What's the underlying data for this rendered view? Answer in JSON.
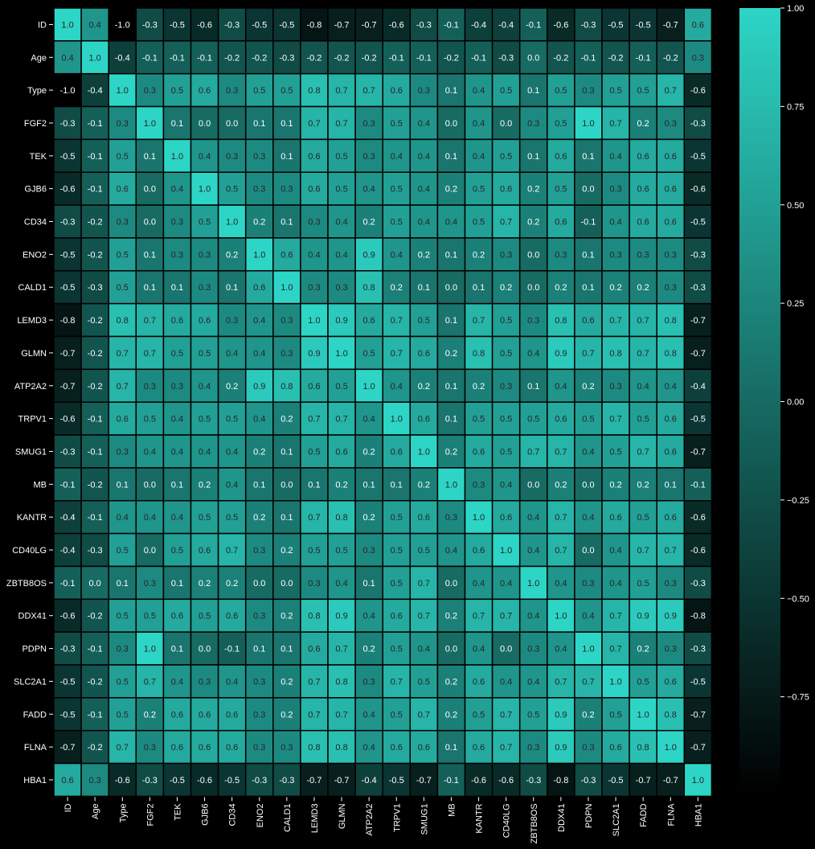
{
  "chart_data": {
    "type": "heatmap",
    "title": "",
    "xlabel": "",
    "ylabel": "",
    "rows": [
      "ID",
      "Age",
      "Type",
      "FGF2",
      "TEK",
      "GJB6",
      "CD34",
      "ENO2",
      "CALD1",
      "LEMD3",
      "GLMN",
      "ATP2A2",
      "TRPV1",
      "SMUG1",
      "MB",
      "KANTR",
      "CD40LG",
      "ZBTB8OS",
      "DDX41",
      "PDPN",
      "SLC2A1",
      "FADD",
      "FLNA",
      "HBA1"
    ],
    "columns": [
      "ID",
      "Age",
      "Type",
      "FGF2",
      "TEK",
      "GJB6",
      "CD34",
      "ENO2",
      "CALD1",
      "LEMD3",
      "GLMN",
      "ATP2A2",
      "TRPV1",
      "SMUG1",
      "MB",
      "KANTR",
      "CD40LG",
      "ZBTB8OS",
      "DDX41",
      "PDPN",
      "SLC2A1",
      "FADD",
      "FLNA",
      "HBA1"
    ],
    "values": [
      [
        1.0,
        0.4,
        -1.0,
        -0.3,
        -0.5,
        -0.6,
        -0.3,
        -0.5,
        -0.5,
        -0.8,
        -0.7,
        -0.7,
        -0.6,
        -0.3,
        -0.1,
        -0.4,
        -0.4,
        -0.1,
        -0.6,
        -0.3,
        -0.5,
        -0.5,
        -0.7,
        0.6
      ],
      [
        0.4,
        1.0,
        -0.4,
        -0.1,
        -0.1,
        -0.1,
        -0.2,
        -0.2,
        -0.3,
        -0.2,
        -0.2,
        -0.2,
        -0.1,
        -0.1,
        -0.2,
        -0.1,
        -0.3,
        0.0,
        -0.2,
        -0.1,
        -0.2,
        -0.1,
        -0.2,
        0.3
      ],
      [
        -1.0,
        -0.4,
        1.0,
        0.3,
        0.5,
        0.6,
        0.3,
        0.5,
        0.5,
        0.8,
        0.7,
        0.7,
        0.6,
        0.3,
        0.1,
        0.4,
        0.5,
        0.1,
        0.5,
        0.3,
        0.5,
        0.5,
        0.7,
        -0.6
      ],
      [
        -0.3,
        -0.1,
        0.3,
        1.0,
        0.1,
        0.0,
        -0.0,
        0.1,
        0.1,
        0.7,
        0.7,
        0.3,
        0.5,
        0.4,
        -0.0,
        0.4,
        0.0,
        0.3,
        0.5,
        1.0,
        0.7,
        0.2,
        0.3,
        -0.3
      ],
      [
        -0.5,
        -0.1,
        0.5,
        0.1,
        1.0,
        0.4,
        0.3,
        0.3,
        0.1,
        0.6,
        0.5,
        0.3,
        0.4,
        0.4,
        0.1,
        0.4,
        0.5,
        0.1,
        0.6,
        0.1,
        0.4,
        0.6,
        0.6,
        -0.5
      ],
      [
        -0.6,
        -0.1,
        0.6,
        0.0,
        0.4,
        1.0,
        0.5,
        0.3,
        0.3,
        0.6,
        0.5,
        0.4,
        0.5,
        0.4,
        0.2,
        0.5,
        0.6,
        0.2,
        0.5,
        0.0,
        0.3,
        0.6,
        0.6,
        -0.6
      ],
      [
        -0.3,
        -0.2,
        0.3,
        -0.0,
        0.3,
        0.5,
        1.0,
        0.2,
        0.1,
        0.3,
        0.4,
        0.2,
        0.5,
        0.4,
        0.4,
        0.5,
        0.7,
        0.2,
        0.6,
        -0.1,
        0.4,
        0.6,
        0.6,
        -0.5
      ],
      [
        -0.5,
        -0.2,
        0.5,
        0.1,
        0.3,
        0.3,
        0.2,
        1.0,
        0.6,
        0.4,
        0.4,
        0.9,
        0.4,
        0.2,
        0.1,
        0.2,
        0.3,
        -0.0,
        0.3,
        0.1,
        0.3,
        0.3,
        0.3,
        -0.3
      ],
      [
        -0.5,
        -0.3,
        0.5,
        0.1,
        0.1,
        0.3,
        0.1,
        0.6,
        1.0,
        0.3,
        0.3,
        0.8,
        0.2,
        0.1,
        0.0,
        0.1,
        0.2,
        -0.0,
        0.2,
        0.1,
        0.2,
        0.2,
        0.3,
        -0.3
      ],
      [
        -0.8,
        -0.2,
        0.8,
        0.7,
        0.6,
        0.6,
        0.3,
        0.4,
        0.3,
        1.0,
        0.9,
        0.6,
        0.7,
        0.5,
        0.1,
        0.7,
        0.5,
        0.3,
        0.8,
        0.6,
        0.7,
        0.7,
        0.8,
        -0.7
      ],
      [
        -0.7,
        -0.2,
        0.7,
        0.7,
        0.5,
        0.5,
        0.4,
        0.4,
        0.3,
        0.9,
        1.0,
        0.5,
        0.7,
        0.6,
        0.2,
        0.8,
        0.5,
        0.4,
        0.9,
        0.7,
        0.8,
        0.7,
        0.8,
        -0.7
      ],
      [
        -0.7,
        -0.2,
        0.7,
        0.3,
        0.3,
        0.4,
        0.2,
        0.9,
        0.8,
        0.6,
        0.5,
        1.0,
        0.4,
        0.2,
        0.1,
        0.2,
        0.3,
        0.1,
        0.4,
        0.2,
        0.3,
        0.4,
        0.4,
        -0.4
      ],
      [
        -0.6,
        -0.1,
        0.6,
        0.5,
        0.4,
        0.5,
        0.5,
        0.4,
        0.2,
        0.7,
        0.7,
        0.4,
        1.0,
        0.6,
        0.1,
        0.5,
        0.5,
        0.5,
        0.6,
        0.5,
        0.7,
        0.5,
        0.6,
        -0.5
      ],
      [
        -0.3,
        -0.1,
        0.3,
        0.4,
        0.4,
        0.4,
        0.4,
        0.2,
        0.1,
        0.5,
        0.6,
        0.2,
        0.6,
        1.0,
        0.2,
        0.6,
        0.5,
        0.7,
        0.7,
        0.4,
        0.5,
        0.7,
        0.6,
        -0.7
      ],
      [
        -0.1,
        -0.2,
        0.1,
        -0.0,
        0.1,
        0.2,
        0.4,
        0.1,
        0.0,
        0.1,
        0.2,
        0.1,
        0.1,
        0.2,
        1.0,
        0.3,
        0.4,
        0.0,
        0.2,
        -0.0,
        0.2,
        0.2,
        0.1,
        -0.1
      ],
      [
        -0.4,
        -0.1,
        0.4,
        0.4,
        0.4,
        0.5,
        0.5,
        0.2,
        0.1,
        0.7,
        0.8,
        0.2,
        0.5,
        0.6,
        0.3,
        1.0,
        0.6,
        0.4,
        0.7,
        0.4,
        0.6,
        0.5,
        0.6,
        -0.6
      ],
      [
        -0.4,
        -0.3,
        0.5,
        0.0,
        0.5,
        0.6,
        0.7,
        0.3,
        0.2,
        0.5,
        0.5,
        0.3,
        0.5,
        0.5,
        0.4,
        0.6,
        1.0,
        0.4,
        0.7,
        -0.0,
        0.4,
        0.7,
        0.7,
        -0.6
      ],
      [
        -0.1,
        0.0,
        0.1,
        0.3,
        0.1,
        0.2,
        0.2,
        -0.0,
        -0.0,
        0.3,
        0.4,
        0.1,
        0.5,
        0.7,
        0.0,
        0.4,
        0.4,
        1.0,
        0.4,
        0.3,
        0.4,
        0.5,
        0.3,
        -0.3
      ],
      [
        -0.6,
        -0.2,
        0.5,
        0.5,
        0.6,
        0.5,
        0.6,
        0.3,
        0.2,
        0.8,
        0.9,
        0.4,
        0.6,
        0.7,
        0.2,
        0.7,
        0.7,
        0.4,
        1.0,
        0.4,
        0.7,
        0.9,
        0.9,
        -0.8
      ],
      [
        -0.3,
        -0.1,
        0.3,
        1.0,
        0.1,
        0.0,
        -0.1,
        0.1,
        0.1,
        0.6,
        0.7,
        0.2,
        0.5,
        0.4,
        -0.0,
        0.4,
        -0.0,
        0.3,
        0.4,
        1.0,
        0.7,
        0.2,
        0.3,
        -0.3
      ],
      [
        -0.5,
        -0.2,
        0.5,
        0.7,
        0.4,
        0.3,
        0.4,
        0.3,
        0.2,
        0.7,
        0.8,
        0.3,
        0.7,
        0.5,
        0.2,
        0.6,
        0.4,
        0.4,
        0.7,
        0.7,
        1.0,
        0.5,
        0.6,
        -0.5
      ],
      [
        -0.5,
        -0.1,
        0.5,
        0.2,
        0.6,
        0.6,
        0.6,
        0.3,
        0.2,
        0.7,
        0.7,
        0.4,
        0.5,
        0.7,
        0.2,
        0.5,
        0.7,
        0.5,
        0.9,
        0.2,
        0.5,
        1.0,
        0.8,
        -0.7
      ],
      [
        -0.7,
        -0.2,
        0.7,
        0.3,
        0.6,
        0.6,
        0.6,
        0.3,
        0.3,
        0.8,
        0.8,
        0.4,
        0.6,
        0.6,
        0.1,
        0.6,
        0.7,
        0.3,
        0.9,
        0.3,
        0.6,
        0.8,
        1.0,
        -0.7
      ],
      [
        0.6,
        0.3,
        -0.6,
        -0.3,
        -0.5,
        -0.6,
        -0.5,
        -0.3,
        -0.3,
        -0.7,
        -0.7,
        -0.4,
        -0.5,
        -0.7,
        -0.1,
        -0.6,
        -0.6,
        -0.3,
        -0.8,
        -0.3,
        -0.5,
        -0.7,
        -0.7,
        1.0
      ]
    ],
    "vmin": -1.0,
    "vmax": 1.0,
    "colorbar_ticks": [
      1.0,
      0.75,
      0.5,
      0.25,
      0.0,
      -0.25,
      -0.5,
      -0.75
    ],
    "colorbar_tick_labels": [
      "1.00",
      "0.75",
      "0.50",
      "0.25",
      "0.00",
      "−0.25",
      "−0.50",
      "−0.75"
    ],
    "colors": {
      "background": "#000000",
      "low": "#000000",
      "high": "#2dd5c6",
      "cell_border": "#000000",
      "text_light": "#ffffff",
      "text_dark": "#262626"
    },
    "legend_position": "right",
    "grid": false
  }
}
